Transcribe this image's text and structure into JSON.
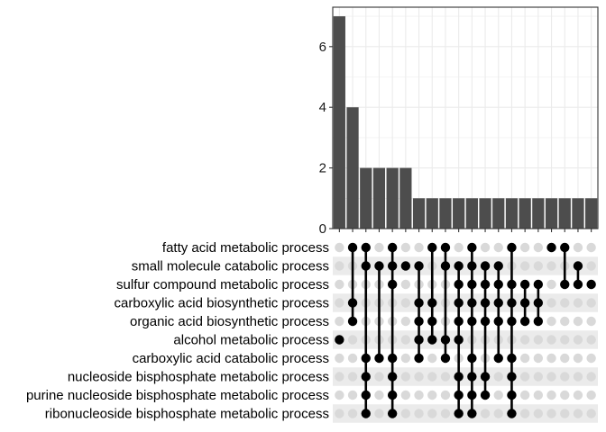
{
  "chart_data": {
    "type": "upset",
    "title": "",
    "xlabel": "",
    "ylabel": "",
    "ylim": [
      0,
      7.3
    ],
    "yticks": [
      0,
      2,
      4,
      6
    ],
    "grid": true,
    "colors": {
      "bar": "#4d4d4d",
      "dot_active": "#000000",
      "dot_inactive": "#d9d9d9",
      "band": "#ebebeb",
      "grid": "#ebebeb"
    },
    "sets": [
      "fatty acid metabolic process",
      "small molecule catabolic process",
      "sulfur compound metabolic process",
      "carboxylic acid biosynthetic process",
      "organic acid biosynthetic process",
      "alcohol metabolic process",
      "carboxylic acid catabolic process",
      "nucleoside bisphosphate metabolic process",
      "purine nucleoside bisphosphate metabolic process",
      "ribonucleoside bisphosphate metabolic process"
    ],
    "intersections": [
      {
        "size": 7,
        "sets": [
          5
        ]
      },
      {
        "size": 4,
        "sets": [
          0,
          3,
          4
        ]
      },
      {
        "size": 2,
        "sets": [
          0,
          1,
          6,
          7,
          8,
          9
        ]
      },
      {
        "size": 2,
        "sets": [
          1,
          6
        ]
      },
      {
        "size": 2,
        "sets": [
          0,
          1,
          2,
          6,
          7,
          8,
          9
        ]
      },
      {
        "size": 2,
        "sets": [
          1
        ]
      },
      {
        "size": 1,
        "sets": [
          1,
          3,
          4,
          5,
          6
        ]
      },
      {
        "size": 1,
        "sets": [
          0,
          3,
          4,
          5
        ]
      },
      {
        "size": 1,
        "sets": [
          0,
          1,
          5,
          6
        ]
      },
      {
        "size": 1,
        "sets": [
          1,
          2,
          3,
          4,
          5,
          7,
          8,
          9
        ]
      },
      {
        "size": 1,
        "sets": [
          0,
          1,
          2,
          3,
          4,
          6,
          7,
          8,
          9
        ]
      },
      {
        "size": 1,
        "sets": [
          1,
          2,
          3,
          4,
          7,
          8
        ]
      },
      {
        "size": 1,
        "sets": [
          1,
          2,
          3,
          4,
          6
        ]
      },
      {
        "size": 1,
        "sets": [
          0,
          2,
          3,
          4,
          6,
          7,
          8,
          9
        ]
      },
      {
        "size": 1,
        "sets": [
          2,
          3,
          4
        ]
      },
      {
        "size": 1,
        "sets": [
          2,
          3,
          4
        ]
      },
      {
        "size": 1,
        "sets": [
          0
        ]
      },
      {
        "size": 1,
        "sets": [
          0,
          2
        ]
      },
      {
        "size": 1,
        "sets": [
          1,
          2
        ]
      },
      {
        "size": 1,
        "sets": [
          2
        ]
      }
    ]
  }
}
